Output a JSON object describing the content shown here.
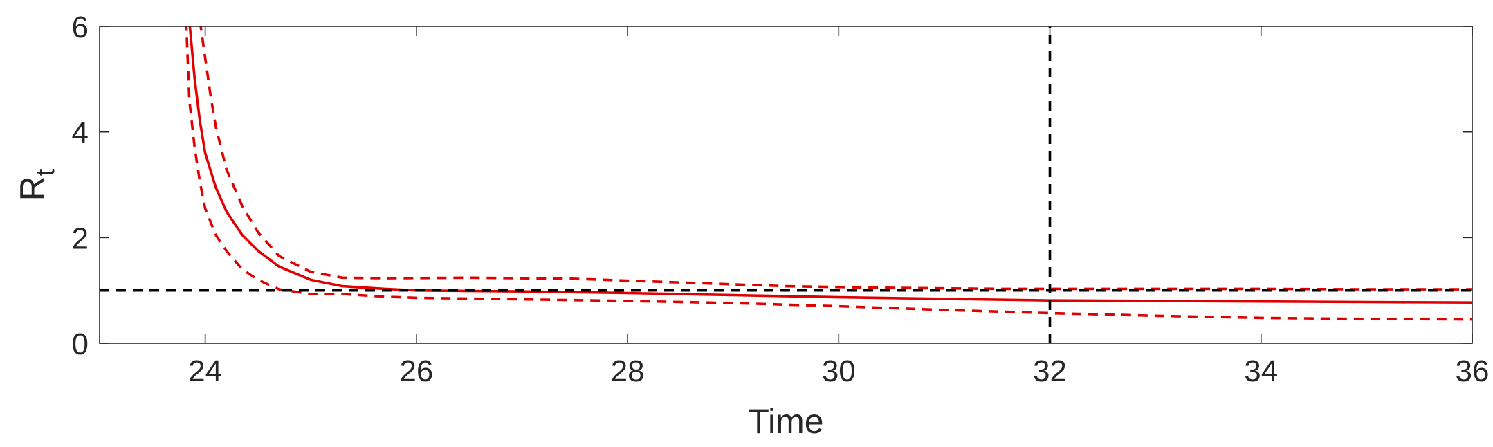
{
  "chart_data": {
    "type": "line",
    "title": "",
    "xlabel": "Time",
    "ylabel": "R",
    "ylabel_subscript": "t",
    "xlim": [
      23,
      36
    ],
    "ylim": [
      0,
      6
    ],
    "xticks": [
      24,
      26,
      28,
      30,
      32,
      34,
      36
    ],
    "yticks": [
      0,
      2,
      4,
      6
    ],
    "grid": false,
    "legend": "none",
    "series": [
      {
        "style": "solid",
        "color": "#e00000",
        "x": [
          23.85,
          23.9,
          23.95,
          24.0,
          24.1,
          24.2,
          24.35,
          24.5,
          24.7,
          25.0,
          25.3,
          25.7,
          26.0,
          27.0,
          28.0,
          29.0,
          30.0,
          31.0,
          32.0,
          33.0,
          34.0,
          35.0,
          36.0
        ],
        "y": [
          6.1,
          5.0,
          4.2,
          3.6,
          2.95,
          2.5,
          2.05,
          1.75,
          1.45,
          1.2,
          1.08,
          1.03,
          1.0,
          0.98,
          0.95,
          0.91,
          0.87,
          0.84,
          0.81,
          0.8,
          0.79,
          0.78,
          0.77
        ]
      },
      {
        "style": "dashed",
        "color": "#e00000",
        "x": [
          23.95,
          24.0,
          24.05,
          24.1,
          24.2,
          24.35,
          24.5,
          24.7,
          25.0,
          25.3,
          25.7,
          26.5,
          27.5,
          28.5,
          29.5,
          30.5,
          31.5,
          32.0,
          33.0,
          34.0,
          35.0,
          36.0
        ],
        "y": [
          6.1,
          5.4,
          4.7,
          4.1,
          3.3,
          2.6,
          2.1,
          1.65,
          1.35,
          1.24,
          1.23,
          1.24,
          1.22,
          1.15,
          1.08,
          1.05,
          1.03,
          1.03,
          1.03,
          1.03,
          1.02,
          1.02
        ]
      },
      {
        "style": "dashed",
        "color": "#e00000",
        "x": [
          23.82,
          23.85,
          23.9,
          23.95,
          24.0,
          24.1,
          24.2,
          24.35,
          24.5,
          24.7,
          25.0,
          25.3,
          25.7,
          26.0,
          27.0,
          28.0,
          29.0,
          30.0,
          31.0,
          32.0,
          33.0,
          34.0,
          35.0,
          36.0
        ],
        "y": [
          6.1,
          4.6,
          3.7,
          3.05,
          2.55,
          2.05,
          1.75,
          1.4,
          1.2,
          1.02,
          0.93,
          0.93,
          0.88,
          0.86,
          0.83,
          0.8,
          0.76,
          0.7,
          0.63,
          0.57,
          0.52,
          0.48,
          0.46,
          0.45
        ]
      },
      {
        "style": "dashed",
        "color": "#000000",
        "x": [
          23,
          36
        ],
        "y": [
          1,
          1
        ]
      },
      {
        "style": "dashed",
        "color": "#000000",
        "x": [
          32,
          32
        ],
        "y": [
          0,
          6
        ]
      }
    ]
  }
}
